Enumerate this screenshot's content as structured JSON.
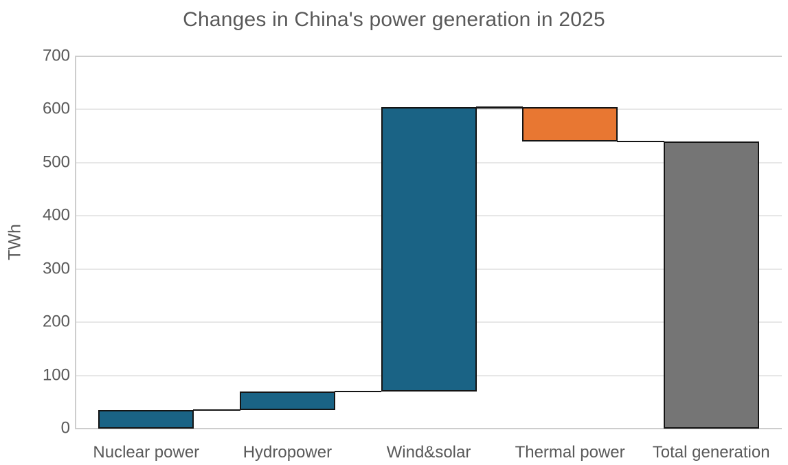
{
  "chart_data": {
    "type": "bar",
    "subtype": "waterfall",
    "title": "Changes in China's power generation in 2025",
    "xlabel": "",
    "ylabel": "TWh",
    "ylim": [
      0,
      700
    ],
    "yticks": [
      0,
      100,
      200,
      300,
      400,
      500,
      600,
      700
    ],
    "grid": true,
    "legend": "none",
    "categories": [
      "Nuclear power",
      "Hydropower",
      "Wind&solar",
      "Thermal power",
      "Total generation"
    ],
    "values": [
      35,
      35,
      534,
      -64,
      540
    ],
    "bars": [
      {
        "label": "Nuclear power",
        "measure": "relative",
        "value": 35,
        "base": 0,
        "top": 35,
        "color": "#1A6385"
      },
      {
        "label": "Hydropower",
        "measure": "relative",
        "value": 35,
        "base": 35,
        "top": 70,
        "color": "#1A6385"
      },
      {
        "label": "Wind&solar",
        "measure": "relative",
        "value": 534,
        "base": 70,
        "top": 604,
        "color": "#1A6385"
      },
      {
        "label": "Thermal power",
        "measure": "relative",
        "value": -64,
        "base": 540,
        "top": 604,
        "color": "#E87732"
      },
      {
        "label": "Total generation",
        "measure": "total",
        "value": 540,
        "base": 0,
        "top": 540,
        "color": "#757575"
      }
    ],
    "connectors": [
      {
        "from": 0,
        "to": 1,
        "level": 35
      },
      {
        "from": 1,
        "to": 2,
        "level": 70
      },
      {
        "from": 2,
        "to": 3,
        "level": 604
      },
      {
        "from": 3,
        "to": 4,
        "level": 540
      }
    ],
    "colors": {
      "increase": "#1A6385",
      "decrease": "#E87732",
      "total": "#757575",
      "bar_outline": "#141414",
      "text": "#595959",
      "gridline": "#e7e7e7",
      "axis_frame": "#cdcdcd"
    }
  }
}
